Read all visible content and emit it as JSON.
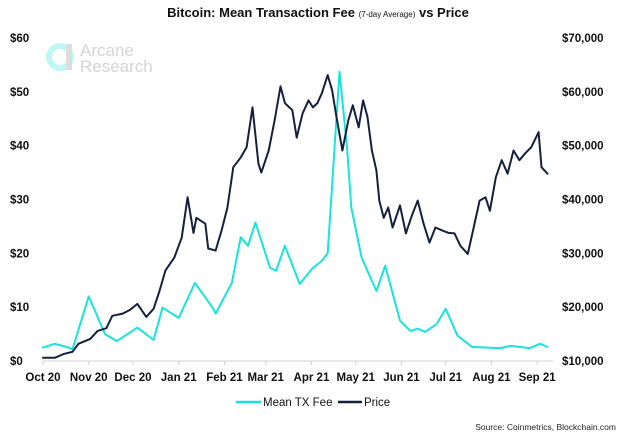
{
  "chart_data": {
    "type": "line",
    "title": "Bitcoin: Mean Transaction Fee",
    "title_note": "(7-day Average)",
    "title_suffix": "vs Price",
    "source": "Source: Coinmetrics, Blockchain.com",
    "watermark": [
      "Arcane",
      "Research"
    ],
    "grid": false,
    "legend_position": "bottom",
    "x_ticks": [
      "Oct 20",
      "Nov 20",
      "Dec 20",
      "Jan 21",
      "Feb 21",
      "Mar 21",
      "Apr 21",
      "May 21",
      "Jun 21",
      "Jul 21",
      "Aug 21",
      "Sep 21"
    ],
    "x_tick_dates": [
      "2020-10-01",
      "2020-11-01",
      "2020-12-01",
      "2021-01-01",
      "2021-02-01",
      "2021-03-01",
      "2021-04-01",
      "2021-05-01",
      "2021-06-01",
      "2021-07-01",
      "2021-08-01",
      "2021-09-01"
    ],
    "xlim": [
      "2020-10-01",
      "2021-09-12"
    ],
    "y_left": {
      "ylim": [
        0,
        60
      ],
      "ticks": [
        "$0",
        "$10",
        "$20",
        "$30",
        "$40",
        "$50",
        "$60"
      ],
      "tick_values": [
        0,
        10,
        20,
        30,
        40,
        50,
        60
      ]
    },
    "y_right": {
      "ylim": [
        10000,
        70000
      ],
      "ticks": [
        "$10,000",
        "$20,000",
        "$30,000",
        "$40,000",
        "$50,000",
        "$60,000",
        "$70,000"
      ],
      "tick_values": [
        10000,
        20000,
        30000,
        40000,
        50000,
        60000,
        70000
      ]
    },
    "series": [
      {
        "name": "Mean TX Fee",
        "axis": "left",
        "color": "#19e3dc",
        "points": [
          [
            "2020-10-01",
            2.5
          ],
          [
            "2020-10-09",
            3.2
          ],
          [
            "2020-10-16",
            2.7
          ],
          [
            "2020-10-21",
            2.2
          ],
          [
            "2020-11-01",
            12
          ],
          [
            "2020-11-12",
            5
          ],
          [
            "2020-11-20",
            3.7
          ],
          [
            "2020-12-04",
            6.2
          ],
          [
            "2020-12-15",
            3.9
          ],
          [
            "2020-12-21",
            9.9
          ],
          [
            "2021-01-01",
            8
          ],
          [
            "2021-01-12",
            14.5
          ],
          [
            "2021-01-24",
            9.9
          ],
          [
            "2021-01-26",
            8.8
          ],
          [
            "2021-02-06",
            14.5
          ],
          [
            "2021-02-12",
            23
          ],
          [
            "2021-02-17",
            21.4
          ],
          [
            "2021-02-22",
            25.7
          ],
          [
            "2021-03-04",
            17.3
          ],
          [
            "2021-03-08",
            16.8
          ],
          [
            "2021-03-14",
            21.4
          ],
          [
            "2021-03-24",
            14.3
          ],
          [
            "2021-04-02",
            17.3
          ],
          [
            "2021-04-08",
            18.6
          ],
          [
            "2021-04-12",
            20
          ],
          [
            "2021-04-16",
            37
          ],
          [
            "2021-04-20",
            53.7
          ],
          [
            "2021-04-25",
            40
          ],
          [
            "2021-04-28",
            28.5
          ],
          [
            "2021-05-05",
            19.2
          ],
          [
            "2021-05-15",
            13
          ],
          [
            "2021-05-21",
            17.7
          ],
          [
            "2021-05-31",
            7.5
          ],
          [
            "2021-06-07",
            5.6
          ],
          [
            "2021-06-12",
            6
          ],
          [
            "2021-06-17",
            5.4
          ],
          [
            "2021-06-25",
            6.9
          ],
          [
            "2021-07-01",
            9.7
          ],
          [
            "2021-07-09",
            4.7
          ],
          [
            "2021-07-19",
            2.6
          ],
          [
            "2021-08-07",
            2.4
          ],
          [
            "2021-08-14",
            2.8
          ],
          [
            "2021-08-27",
            2.4
          ],
          [
            "2021-09-03",
            3.2
          ],
          [
            "2021-09-08",
            2.6
          ]
        ]
      },
      {
        "name": "Price",
        "axis": "right",
        "color": "#14213d",
        "points": [
          [
            "2020-10-01",
            10600
          ],
          [
            "2020-10-09",
            10600
          ],
          [
            "2020-10-15",
            11300
          ],
          [
            "2020-10-21",
            11700
          ],
          [
            "2020-10-25",
            13200
          ],
          [
            "2020-11-02",
            14100
          ],
          [
            "2020-11-07",
            15600
          ],
          [
            "2020-11-13",
            16100
          ],
          [
            "2020-11-17",
            18400
          ],
          [
            "2020-11-24",
            18800
          ],
          [
            "2020-11-29",
            19500
          ],
          [
            "2020-12-04",
            20600
          ],
          [
            "2020-12-10",
            18200
          ],
          [
            "2020-12-15",
            19700
          ],
          [
            "2020-12-19",
            23000
          ],
          [
            "2020-12-23",
            26800
          ],
          [
            "2020-12-29",
            29200
          ],
          [
            "2021-01-03",
            32900
          ],
          [
            "2021-01-07",
            40400
          ],
          [
            "2021-01-11",
            33800
          ],
          [
            "2021-01-13",
            36600
          ],
          [
            "2021-01-19",
            35500
          ],
          [
            "2021-01-21",
            30900
          ],
          [
            "2021-01-26",
            30500
          ],
          [
            "2021-01-30",
            34200
          ],
          [
            "2021-02-03",
            38500
          ],
          [
            "2021-02-07",
            46000
          ],
          [
            "2021-02-12",
            47800
          ],
          [
            "2021-02-16",
            49700
          ],
          [
            "2021-02-20",
            57100
          ],
          [
            "2021-02-24",
            46700
          ],
          [
            "2021-02-26",
            45000
          ],
          [
            "2021-03-03",
            49100
          ],
          [
            "2021-03-07",
            54700
          ],
          [
            "2021-03-11",
            61000
          ],
          [
            "2021-03-14",
            57900
          ],
          [
            "2021-03-19",
            56600
          ],
          [
            "2021-03-22",
            51500
          ],
          [
            "2021-03-26",
            56000
          ],
          [
            "2021-03-30",
            58400
          ],
          [
            "2021-04-02",
            57100
          ],
          [
            "2021-04-05",
            57900
          ],
          [
            "2021-04-08",
            59700
          ],
          [
            "2021-04-12",
            63100
          ],
          [
            "2021-04-15",
            60300
          ],
          [
            "2021-04-18",
            55300
          ],
          [
            "2021-04-22",
            49100
          ],
          [
            "2021-04-26",
            54700
          ],
          [
            "2021-04-29",
            57500
          ],
          [
            "2021-05-03",
            53400
          ],
          [
            "2021-05-06",
            58400
          ],
          [
            "2021-05-09",
            55300
          ],
          [
            "2021-05-12",
            49100
          ],
          [
            "2021-05-15",
            45400
          ],
          [
            "2021-05-17",
            39800
          ],
          [
            "2021-05-20",
            36600
          ],
          [
            "2021-05-23",
            38500
          ],
          [
            "2021-05-26",
            34800
          ],
          [
            "2021-05-31",
            38900
          ],
          [
            "2021-06-04",
            33700
          ],
          [
            "2021-06-08",
            37000
          ],
          [
            "2021-06-12",
            39800
          ],
          [
            "2021-06-16",
            35500
          ],
          [
            "2021-06-20",
            32000
          ],
          [
            "2021-06-24",
            34800
          ],
          [
            "2021-06-29",
            34200
          ],
          [
            "2021-07-03",
            33800
          ],
          [
            "2021-07-07",
            33700
          ],
          [
            "2021-07-11",
            31400
          ],
          [
            "2021-07-16",
            29900
          ],
          [
            "2021-07-20",
            34800
          ],
          [
            "2021-07-24",
            39800
          ],
          [
            "2021-07-28",
            40400
          ],
          [
            "2021-07-31",
            37900
          ],
          [
            "2021-08-04",
            44100
          ],
          [
            "2021-08-08",
            47300
          ],
          [
            "2021-08-12",
            44800
          ],
          [
            "2021-08-16",
            49100
          ],
          [
            "2021-08-20",
            47300
          ],
          [
            "2021-08-24",
            48600
          ],
          [
            "2021-08-28",
            49700
          ],
          [
            "2021-09-02",
            52500
          ],
          [
            "2021-09-04",
            46000
          ],
          [
            "2021-09-08",
            44800
          ]
        ]
      }
    ]
  }
}
